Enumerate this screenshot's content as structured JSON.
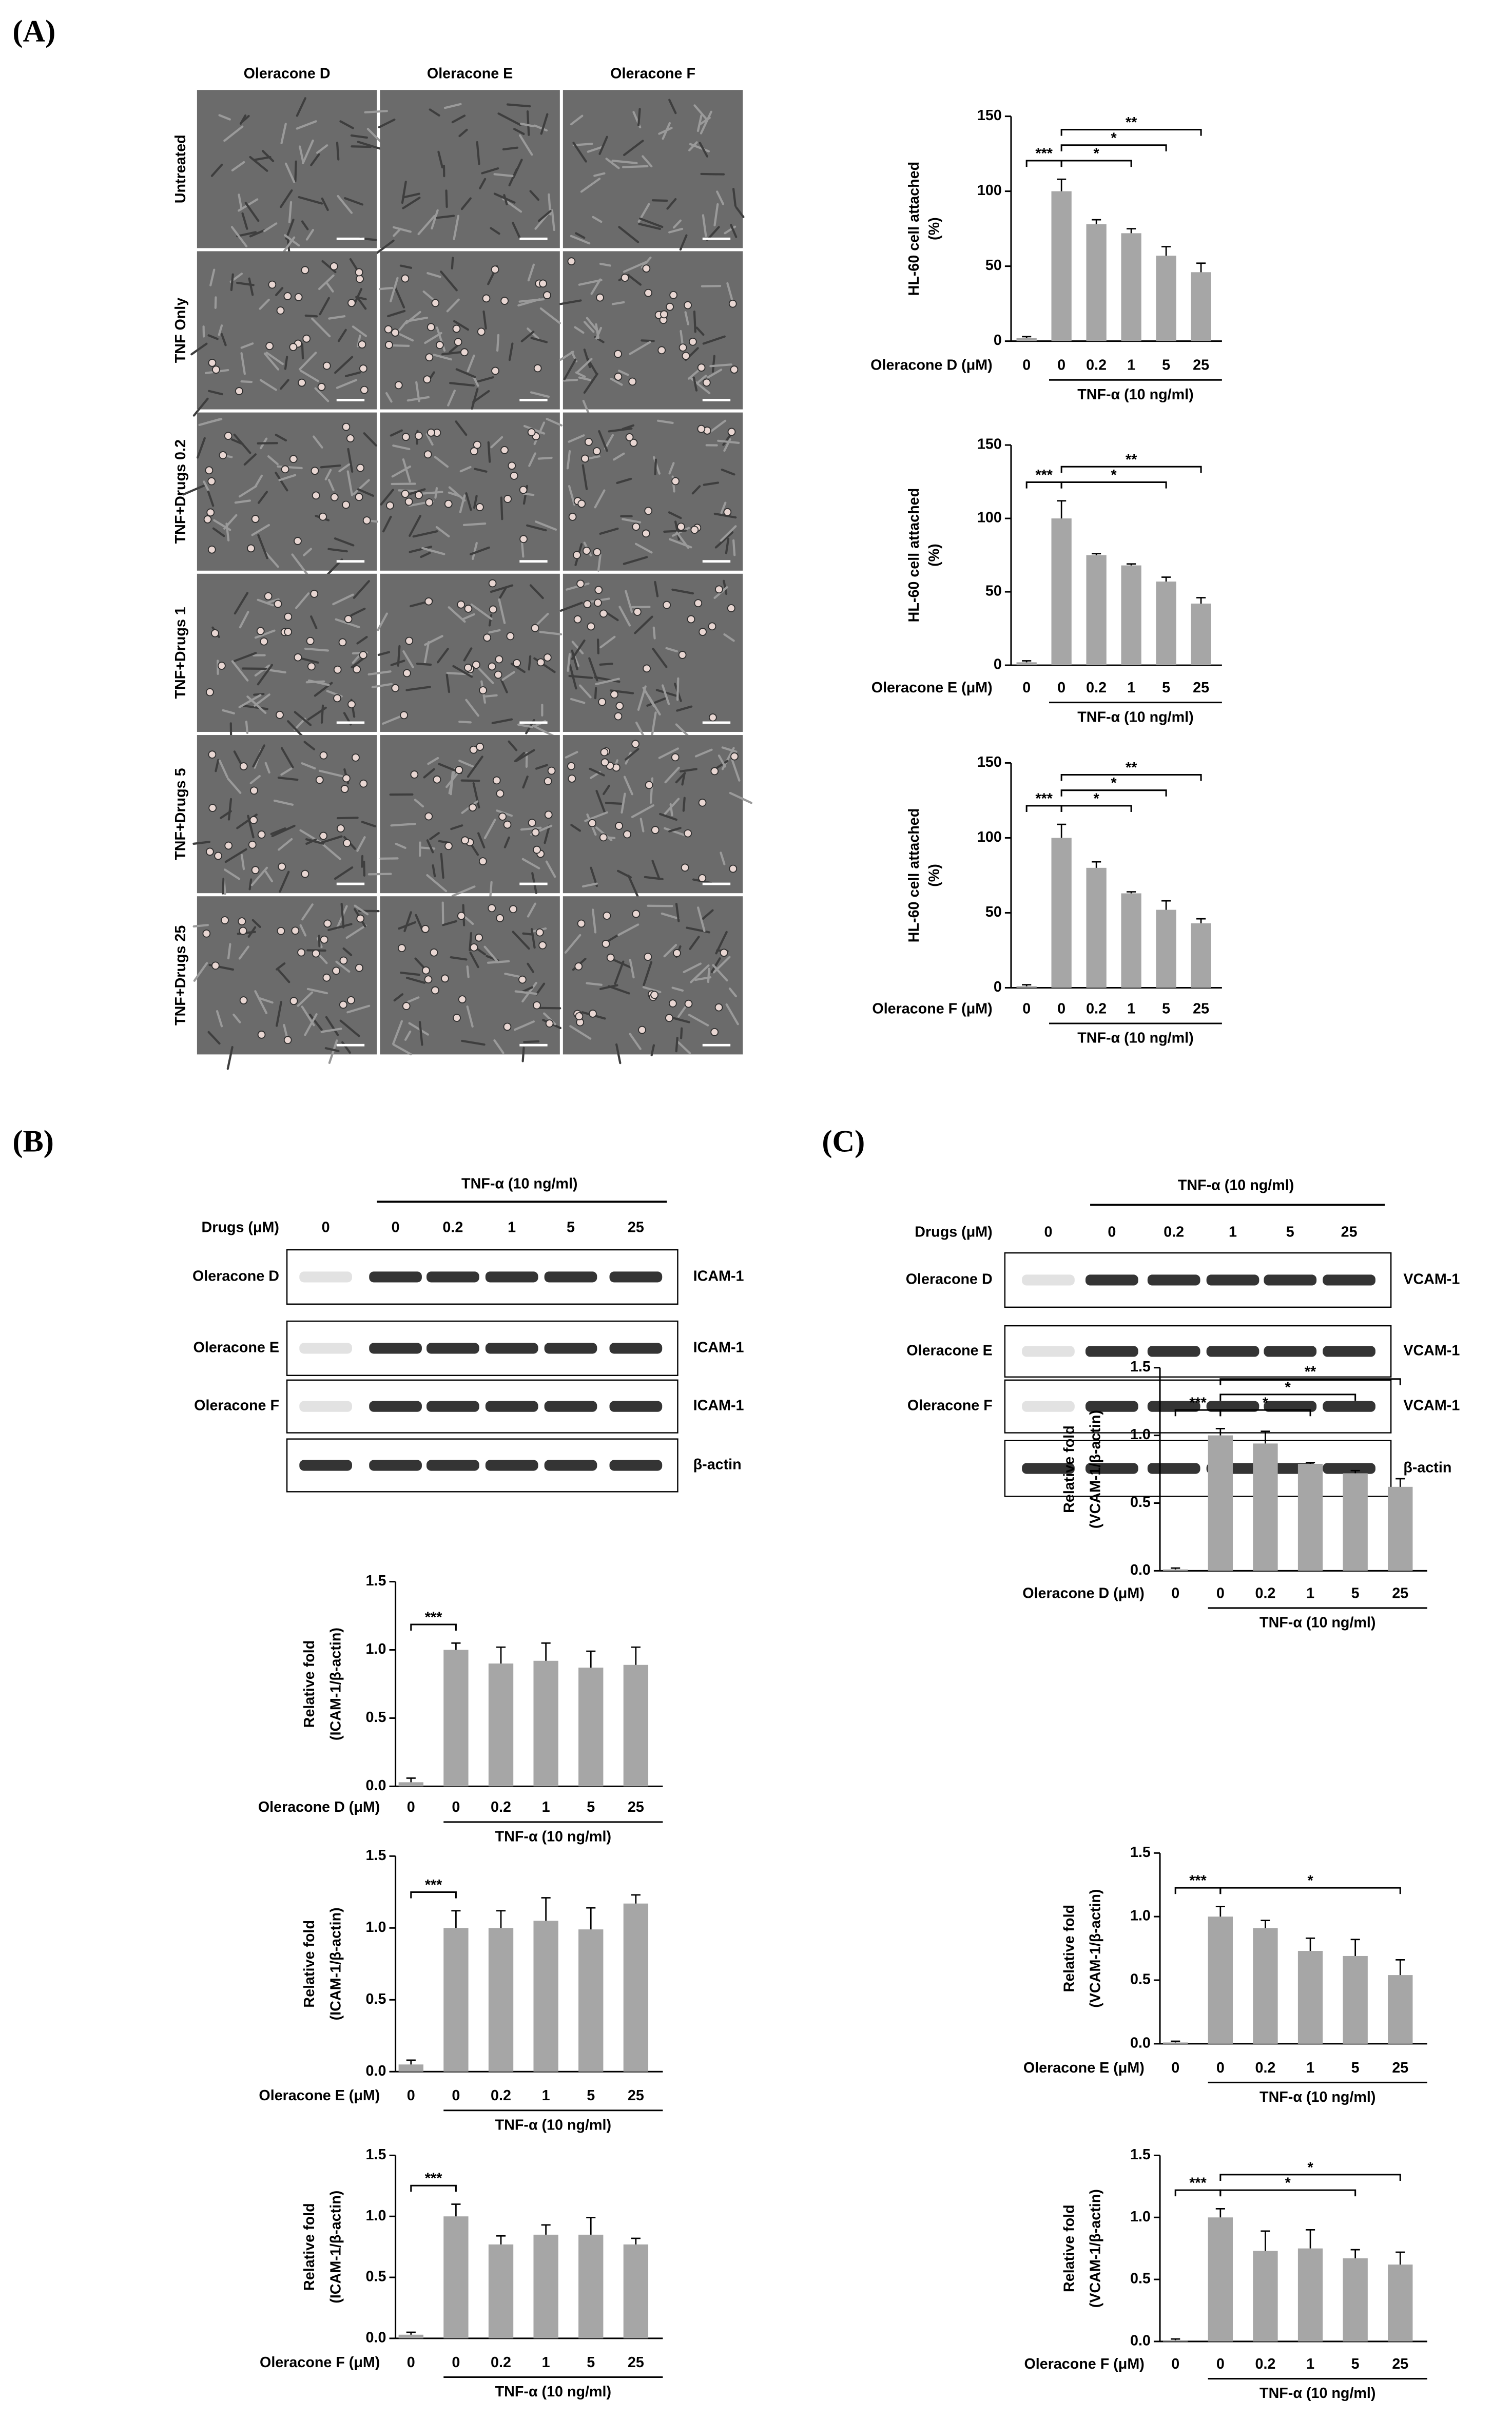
{
  "panel_labels": [
    "(A)",
    "(B)",
    "(C)"
  ],
  "micrographs": {
    "columns": [
      "Oleracone D",
      "Oleracone E",
      "Oleracone F"
    ],
    "rows": [
      "Untreated",
      "TNF Only",
      "TNF+Drugs 0.2",
      "TNF+Drugs 1",
      "TNF+Drugs 5",
      "TNF+Drugs 25"
    ]
  },
  "blots": [
    {
      "treatment": "TNF-α (10 ng/ml)",
      "lane_header": "Drugs (μM)",
      "lanes": [
        "0",
        "0",
        "0.2",
        "1",
        "5",
        "25"
      ],
      "rows": [
        {
          "label": "Oleracone D",
          "protein": "ICAM-1"
        },
        {
          "label": "Oleracone E",
          "protein": "ICAM-1"
        },
        {
          "label": "Oleracone F",
          "protein": "ICAM-1"
        }
      ],
      "loading_control": "β-actin"
    },
    {
      "treatment": "TNF-α (10 ng/ml)",
      "lane_header": "Drugs (μM)",
      "lanes": [
        "0",
        "0",
        "0.2",
        "1",
        "5",
        "25"
      ],
      "rows": [
        {
          "label": "Oleracone D",
          "protein": "VCAM-1"
        },
        {
          "label": "Oleracone E",
          "protein": "VCAM-1"
        },
        {
          "label": "Oleracone F",
          "protein": "VCAM-1"
        }
      ],
      "loading_control": "β-actin"
    }
  ],
  "chart_data": [
    {
      "type": "bar",
      "y_label": [
        "HL-60 cell attached",
        "(%)"
      ],
      "x_label": "Oleracone D (μM)",
      "group_label": "TNF-α (10 ng/ml)",
      "categories": [
        "0",
        "0",
        "0.2",
        "1",
        "5",
        "25"
      ],
      "values": [
        2,
        100,
        78,
        72,
        57,
        46
      ],
      "errors": [
        1,
        8,
        3,
        3,
        6,
        6
      ],
      "color": "#a6a6a6",
      "ylim": [
        0,
        150
      ],
      "yticks": [
        0,
        50,
        100,
        150
      ],
      "significance": [
        {
          "label": "***",
          "between": [
            0,
            1
          ]
        },
        {
          "label": "*",
          "between": [
            1,
            3
          ]
        },
        {
          "label": "*",
          "between": [
            1,
            4
          ]
        },
        {
          "label": "**",
          "between": [
            1,
            5
          ]
        }
      ]
    },
    {
      "type": "bar",
      "y_label": [
        "HL-60 cell attached",
        "(%)"
      ],
      "x_label": "Oleracone E (μM)",
      "group_label": "TNF-α (10 ng/ml)",
      "categories": [
        "0",
        "0",
        "0.2",
        "1",
        "5",
        "25"
      ],
      "values": [
        2,
        100,
        75,
        68,
        57,
        42
      ],
      "errors": [
        1,
        12,
        1,
        1,
        3,
        4
      ],
      "color": "#a6a6a6",
      "ylim": [
        0,
        150
      ],
      "yticks": [
        0,
        50,
        100,
        150
      ],
      "significance": [
        {
          "label": "***",
          "between": [
            0,
            1
          ]
        },
        {
          "label": "*",
          "between": [
            1,
            4
          ]
        },
        {
          "label": "**",
          "between": [
            1,
            5
          ]
        }
      ]
    },
    {
      "type": "bar",
      "y_label": [
        "HL-60 cell attached",
        "(%)"
      ],
      "x_label": "Oleracone F (μM)",
      "group_label": "TNF-α (10 ng/ml)",
      "categories": [
        "0",
        "0",
        "0.2",
        "1",
        "5",
        "25"
      ],
      "values": [
        1,
        100,
        80,
        63,
        52,
        43
      ],
      "errors": [
        1,
        9,
        4,
        1,
        6,
        3
      ],
      "color": "#a6a6a6",
      "ylim": [
        0,
        150
      ],
      "yticks": [
        0,
        50,
        100,
        150
      ],
      "significance": [
        {
          "label": "***",
          "between": [
            0,
            1
          ]
        },
        {
          "label": "*",
          "between": [
            1,
            3
          ]
        },
        {
          "label": "*",
          "between": [
            1,
            4
          ]
        },
        {
          "label": "**",
          "between": [
            1,
            5
          ]
        }
      ]
    },
    {
      "type": "bar",
      "y_label": [
        "Relative fold",
        "(ICAM-1/β-actin)"
      ],
      "x_label": "Oleracone D (μM)",
      "group_label": "TNF-α (10 ng/ml)",
      "categories": [
        "0",
        "0",
        "0.2",
        "1",
        "5",
        "25"
      ],
      "values": [
        0.03,
        1.0,
        0.9,
        0.92,
        0.87,
        0.89
      ],
      "errors": [
        0.03,
        0.05,
        0.12,
        0.13,
        0.12,
        0.13
      ],
      "color": "#a6a6a6",
      "ylim": [
        0,
        1.5
      ],
      "yticks": [
        {
          "value": 0,
          "label": "0.0"
        },
        0.5,
        {
          "value": 1,
          "label": "1.0"
        },
        1.5
      ],
      "significance": [
        {
          "label": "***",
          "between": [
            0,
            1
          ]
        }
      ]
    },
    {
      "type": "bar",
      "y_label": [
        "Relative fold",
        "(ICAM-1/β-actin)"
      ],
      "x_label": "Oleracone E (μM)",
      "group_label": "TNF-α (10 ng/ml)",
      "categories": [
        "0",
        "0",
        "0.2",
        "1",
        "5",
        "25"
      ],
      "values": [
        0.05,
        1.0,
        1.0,
        1.05,
        0.99,
        1.17
      ],
      "errors": [
        0.03,
        0.12,
        0.12,
        0.16,
        0.15,
        0.06
      ],
      "color": "#a6a6a6",
      "ylim": [
        0,
        1.5
      ],
      "yticks": [
        {
          "value": 0,
          "label": "0.0"
        },
        0.5,
        {
          "value": 1,
          "label": "1.0"
        },
        1.5
      ],
      "significance": [
        {
          "label": "***",
          "between": [
            0,
            1
          ]
        }
      ]
    },
    {
      "type": "bar",
      "y_label": [
        "Relative fold",
        "(ICAM-1/β-actin)"
      ],
      "x_label": "Oleracone F (μM)",
      "group_label": "TNF-α (10 ng/ml)",
      "categories": [
        "0",
        "0",
        "0.2",
        "1",
        "5",
        "25"
      ],
      "values": [
        0.03,
        1.0,
        0.77,
        0.85,
        0.85,
        0.77
      ],
      "errors": [
        0.02,
        0.1,
        0.07,
        0.08,
        0.14,
        0.05
      ],
      "color": "#a6a6a6",
      "ylim": [
        0,
        1.5
      ],
      "yticks": [
        {
          "value": 0,
          "label": "0.0"
        },
        0.5,
        {
          "value": 1,
          "label": "1.0"
        },
        1.5
      ],
      "significance": [
        {
          "label": "***",
          "between": [
            0,
            1
          ]
        }
      ]
    },
    {
      "type": "bar",
      "y_label": [
        "Relative fold",
        "(VCAM-1/β-actin)"
      ],
      "x_label": "Oleracone D (μM)",
      "group_label": "TNF-α (10 ng/ml)",
      "categories": [
        "0",
        "0",
        "0.2",
        "1",
        "5",
        "25"
      ],
      "values": [
        0.01,
        1.0,
        0.94,
        0.79,
        0.72,
        0.62
      ],
      "errors": [
        0.01,
        0.05,
        0.09,
        0.01,
        0.02,
        0.06
      ],
      "color": "#a6a6a6",
      "ylim": [
        0,
        1.5
      ],
      "yticks": [
        {
          "value": 0,
          "label": "0.0"
        },
        0.5,
        {
          "value": 1,
          "label": "1.0"
        },
        1.5
      ],
      "significance": [
        {
          "label": "***",
          "between": [
            0,
            1
          ]
        },
        {
          "label": "*",
          "between": [
            1,
            3
          ]
        },
        {
          "label": "*",
          "between": [
            1,
            4
          ]
        },
        {
          "label": "**",
          "between": [
            1,
            5
          ]
        }
      ]
    },
    {
      "type": "bar",
      "y_label": [
        "Relative fold",
        "(VCAM-1/β-actin)"
      ],
      "x_label": "Oleracone E (μM)",
      "group_label": "TNF-α (10 ng/ml)",
      "categories": [
        "0",
        "0",
        "0.2",
        "1",
        "5",
        "25"
      ],
      "values": [
        0.01,
        1.0,
        0.91,
        0.73,
        0.69,
        0.54
      ],
      "errors": [
        0.01,
        0.08,
        0.06,
        0.1,
        0.13,
        0.12
      ],
      "color": "#a6a6a6",
      "ylim": [
        0,
        1.5
      ],
      "yticks": [
        {
          "value": 0,
          "label": "0.0"
        },
        0.5,
        {
          "value": 1,
          "label": "1.0"
        },
        1.5
      ],
      "significance": [
        {
          "label": "***",
          "between": [
            0,
            1
          ]
        },
        {
          "label": "*",
          "between": [
            1,
            5
          ]
        }
      ]
    },
    {
      "type": "bar",
      "y_label": [
        "Relative fold",
        "(VCAM-1/β-actin)"
      ],
      "x_label": "Oleracone F (μM)",
      "group_label": "TNF-α (10 ng/ml)",
      "categories": [
        "0",
        "0",
        "0.2",
        "1",
        "5",
        "25"
      ],
      "values": [
        0.01,
        1.0,
        0.73,
        0.75,
        0.67,
        0.62
      ],
      "errors": [
        0.01,
        0.07,
        0.16,
        0.15,
        0.07,
        0.1
      ],
      "color": "#a6a6a6",
      "ylim": [
        0,
        1.5
      ],
      "yticks": [
        {
          "value": 0,
          "label": "0.0"
        },
        0.5,
        {
          "value": 1,
          "label": "1.0"
        },
        1.5
      ],
      "significance": [
        {
          "label": "***",
          "between": [
            0,
            1
          ]
        },
        {
          "label": "*",
          "between": [
            1,
            4
          ]
        },
        {
          "label": "*",
          "between": [
            1,
            5
          ]
        }
      ]
    }
  ]
}
